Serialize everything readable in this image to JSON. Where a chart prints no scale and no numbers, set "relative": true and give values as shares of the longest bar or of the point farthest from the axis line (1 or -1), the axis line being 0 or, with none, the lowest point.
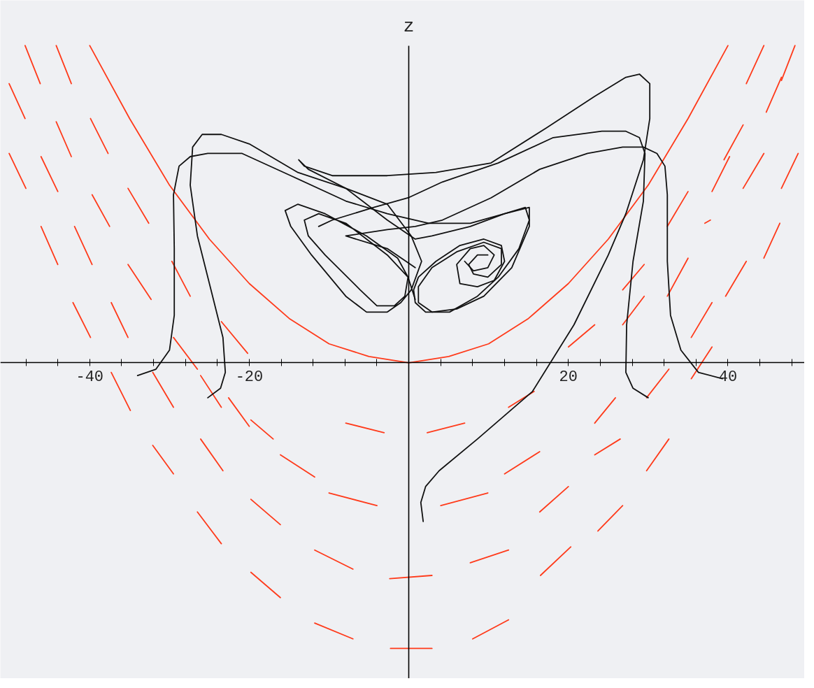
{
  "chart_data": {
    "type": "line",
    "ylabel": "z",
    "relative": true,
    "xlim": [
      -51.2,
      49.6
    ],
    "xticks": [
      {
        "value": -48,
        "label": null
      },
      {
        "value": -44,
        "label": null
      },
      -40,
      {
        "value": -36,
        "label": null
      },
      {
        "value": -32,
        "label": null
      },
      {
        "value": -28,
        "label": null
      },
      {
        "value": -24,
        "label": null
      },
      -20,
      {
        "value": -16,
        "label": null
      },
      {
        "value": -12,
        "label": null
      },
      {
        "value": -8,
        "label": null
      },
      {
        "value": -4,
        "label": null
      },
      {
        "value": 4,
        "label": null
      },
      {
        "value": 8,
        "label": null
      },
      {
        "value": 12,
        "label": null
      },
      {
        "value": 16,
        "label": null
      },
      20,
      {
        "value": 24,
        "label": null
      },
      {
        "value": 28,
        "label": null
      },
      {
        "value": 32,
        "label": null
      },
      {
        "value": 36,
        "label": null
      },
      40,
      {
        "value": 44,
        "label": null
      },
      {
        "value": 48,
        "label": null
      }
    ],
    "series": [
      {
        "color": "#ff3a1a",
        "x": [
          -40,
          -35,
          -30,
          -25,
          -20,
          -15,
          -10,
          -5,
          0,
          5,
          10,
          15,
          20,
          25,
          30,
          35,
          40
        ],
        "values": [
          1.0,
          0.77,
          0.56,
          0.39,
          0.25,
          0.14,
          0.06,
          0.02,
          0,
          0.02,
          0.06,
          0.14,
          0.25,
          0.39,
          0.56,
          0.77,
          1.0
        ]
      },
      {
        "color": "#ff3a1a",
        "x": [
          -48.1,
          -46.2
        ],
        "values": [
          1.0,
          0.88
        ]
      },
      {
        "color": "#ff3a1a",
        "x": [
          -44.2,
          -42.3
        ],
        "values": [
          1.0,
          0.88
        ]
      },
      {
        "color": "#ff3a1a",
        "x": [
          -50.1,
          -48.1
        ],
        "values": [
          0.88,
          0.77
        ]
      },
      {
        "color": "#ff3a1a",
        "x": [
          -44.2,
          -42.3
        ],
        "values": [
          0.76,
          0.65
        ]
      },
      {
        "color": "#ff3a1a",
        "x": [
          -39.9,
          -37.7
        ],
        "values": [
          0.77,
          0.66
        ]
      },
      {
        "color": "#ff3a1a",
        "x": [
          -50.1,
          -48.0
        ],
        "values": [
          0.66,
          0.55
        ]
      },
      {
        "color": "#ff3a1a",
        "x": [
          -46.1,
          -44.0
        ],
        "values": [
          0.65,
          0.54
        ]
      },
      {
        "color": "#ff3a1a",
        "x": [
          -39.7,
          -37.5
        ],
        "values": [
          0.53,
          0.43
        ]
      },
      {
        "color": "#ff3a1a",
        "x": [
          -35.2,
          -32.6
        ],
        "values": [
          0.55,
          0.44
        ]
      },
      {
        "color": "#ff3a1a",
        "x": [
          -46.1,
          -44.0
        ],
        "values": [
          0.43,
          0.31
        ]
      },
      {
        "color": "#ff3a1a",
        "x": [
          -41.9,
          -39.7
        ],
        "values": [
          0.43,
          0.31
        ]
      },
      {
        "color": "#ff3a1a",
        "x": [
          -35.2,
          -32.3
        ],
        "values": [
          0.31,
          0.2
        ]
      },
      {
        "color": "#ff3a1a",
        "x": [
          -29.7,
          -27.4
        ],
        "values": [
          0.32,
          0.21
        ]
      },
      {
        "color": "#ff3a1a",
        "x": [
          -42.1,
          -39.9
        ],
        "values": [
          0.19,
          0.08
        ]
      },
      {
        "color": "#ff3a1a",
        "x": [
          -37.3,
          -35.2
        ],
        "values": [
          0.19,
          0.08
        ]
      },
      {
        "color": "#ff3a1a",
        "x": [
          -23.5,
          -20.2
        ],
        "values": [
          0.13,
          0.03
        ]
      },
      {
        "color": "#ff3a1a",
        "x": [
          -29.5,
          -26.5
        ],
        "values": [
          0.08,
          -0.02
        ]
      },
      {
        "color": "#ff3a1a",
        "x": [
          -37.3,
          -34.9
        ],
        "values": [
          -0.03,
          -0.15
        ]
      },
      {
        "color": "#ff3a1a",
        "x": [
          -32.1,
          -29.5
        ],
        "values": [
          -0.03,
          -0.14
        ]
      },
      {
        "color": "#ff3a1a",
        "x": [
          -26.1,
          -23.5
        ],
        "values": [
          -0.04,
          -0.14
        ]
      },
      {
        "color": "#ff3a1a",
        "x": [
          -22.6,
          -20.0
        ],
        "values": [
          -0.11,
          -0.2
        ]
      },
      {
        "color": "#ff3a1a",
        "x": [
          -32.1,
          -29.5
        ],
        "values": [
          -0.26,
          -0.35
        ]
      },
      {
        "color": "#ff3a1a",
        "x": [
          -26.1,
          -23.3
        ],
        "values": [
          -0.24,
          -0.34
        ]
      },
      {
        "color": "#ff3a1a",
        "x": [
          -19.8,
          -17.0
        ],
        "values": [
          -0.18,
          -0.24
        ]
      },
      {
        "color": "#ff3a1a",
        "x": [
          -16.1,
          -11.8
        ],
        "values": [
          -0.29,
          -0.36
        ]
      },
      {
        "color": "#ff3a1a",
        "x": [
          -26.5,
          -23.5
        ],
        "values": [
          -0.47,
          -0.57
        ]
      },
      {
        "color": "#ff3a1a",
        "x": [
          -19.8,
          -16.1
        ],
        "values": [
          -0.43,
          -0.51
        ]
      },
      {
        "color": "#ff3a1a",
        "x": [
          -10.0,
          -4.0
        ],
        "values": [
          -0.41,
          -0.45
        ]
      },
      {
        "color": "#ff3a1a",
        "x": [
          -7.9,
          -3.1
        ],
        "values": [
          -0.19,
          -0.22
        ]
      },
      {
        "color": "#ff3a1a",
        "x": [
          -19.8,
          -16.1
        ],
        "values": [
          -0.66,
          -0.74
        ]
      },
      {
        "color": "#ff3a1a",
        "x": [
          -11.8,
          -7.0
        ],
        "values": [
          -0.59,
          -0.65
        ]
      },
      {
        "color": "#ff3a1a",
        "x": [
          -11.8,
          -7.0
        ],
        "values": [
          -0.82,
          -0.87
        ]
      },
      {
        "color": "#ff3a1a",
        "x": [
          -2.4,
          2.9
        ],
        "values": [
          -0.68,
          -0.67
        ]
      },
      {
        "color": "#ff3a1a",
        "x": [
          -2.3,
          2.9
        ],
        "values": [
          -0.9,
          -0.9
        ]
      },
      {
        "color": "#ff3a1a",
        "x": [
          2.3,
          7.0
        ],
        "values": [
          -0.22,
          -0.19
        ]
      },
      {
        "color": "#ff3a1a",
        "x": [
          12.5,
          15.7
        ],
        "values": [
          -0.14,
          -0.09
        ]
      },
      {
        "color": "#ff3a1a",
        "x": [
          12.0,
          16.4
        ],
        "values": [
          -0.35,
          -0.28
        ]
      },
      {
        "color": "#ff3a1a",
        "x": [
          4.0,
          9.9
        ],
        "values": [
          -0.45,
          -0.41
        ]
      },
      {
        "color": "#ff3a1a",
        "x": [
          7.7,
          12.5
        ],
        "values": [
          -0.63,
          -0.59
        ]
      },
      {
        "color": "#ff3a1a",
        "x": [
          16.4,
          20.0
        ],
        "values": [
          -0.47,
          -0.39
        ]
      },
      {
        "color": "#ff3a1a",
        "x": [
          23.3,
          25.9
        ],
        "values": [
          -0.19,
          -0.11
        ]
      },
      {
        "color": "#ff3a1a",
        "x": [
          16.5,
          20.3
        ],
        "values": [
          -0.67,
          -0.58
        ]
      },
      {
        "color": "#ff3a1a",
        "x": [
          8.0,
          12.5
        ],
        "values": [
          -0.87,
          -0.81
        ]
      },
      {
        "color": "#ff3a1a",
        "x": [
          23.3,
          26.5
        ],
        "values": [
          -0.29,
          -0.24
        ]
      },
      {
        "color": "#ff3a1a",
        "x": [
          23.7,
          26.8
        ],
        "values": [
          -0.53,
          -0.45
        ]
      },
      {
        "color": "#ff3a1a",
        "x": [
          29.8,
          32.6
        ],
        "values": [
          -0.34,
          -0.24
        ]
      },
      {
        "color": "#ff3a1a",
        "x": [
          29.8,
          32.6
        ],
        "values": [
          -0.11,
          -0.02
        ]
      },
      {
        "color": "#ff3a1a",
        "x": [
          35.4,
          38.0
        ],
        "values": [
          -0.05,
          0.05
        ]
      },
      {
        "color": "#ff3a1a",
        "x": [
          20.0,
          23.3
        ],
        "values": [
          0.05,
          0.12
        ]
      },
      {
        "color": "#ff3a1a",
        "x": [
          26.8,
          29.5
        ],
        "values": [
          0.12,
          0.21
        ]
      },
      {
        "color": "#ff3a1a",
        "x": [
          26.8,
          29.5
        ],
        "values": [
          0.23,
          0.31
        ]
      },
      {
        "color": "#ff3a1a",
        "x": [
          32.4,
          35.0
        ],
        "values": [
          0.21,
          0.33
        ]
      },
      {
        "color": "#ff3a1a",
        "x": [
          32.4,
          35.0
        ],
        "values": [
          0.43,
          0.54
        ]
      },
      {
        "color": "#ff3a1a",
        "x": [
          39.7,
          42.3
        ],
        "values": [
          0.21,
          0.32
        ]
      },
      {
        "color": "#ff3a1a",
        "x": [
          35.4,
          38.0
        ],
        "values": [
          0.08,
          0.19
        ]
      },
      {
        "color": "#ff3a1a",
        "x": [
          38.0,
          40.2
        ],
        "values": [
          0.54,
          0.65
        ]
      },
      {
        "color": "#ff3a1a",
        "x": [
          41.9,
          44.5
        ],
        "values": [
          0.55,
          0.66
        ]
      },
      {
        "color": "#ff3a1a",
        "x": [
          44.5,
          46.5
        ],
        "values": [
          0.33,
          0.44
        ]
      },
      {
        "color": "#ff3a1a",
        "x": [
          37.1,
          37.8
        ],
        "values": [
          0.44,
          0.45
        ]
      },
      {
        "color": "#ff3a1a",
        "x": [
          46.7,
          48.8
        ],
        "values": [
          0.55,
          0.66
        ]
      },
      {
        "color": "#ff3a1a",
        "x": [
          39.5,
          41.9
        ],
        "values": [
          0.64,
          0.75
        ]
      },
      {
        "color": "#ff3a1a",
        "x": [
          44.8,
          46.7
        ],
        "values": [
          0.79,
          0.9
        ]
      },
      {
        "color": "#ff3a1a",
        "x": [
          42.3,
          44.5
        ],
        "values": [
          0.88,
          1.0
        ]
      },
      {
        "color": "#ff3a1a",
        "x": [
          46.7,
          48.4
        ],
        "values": [
          0.89,
          1.0
        ]
      },
      {
        "color": "#111111",
        "x": [
          -34.0,
          -31.7,
          -30.0,
          -29.4,
          -29.4,
          -29.5,
          -28.8,
          -27.4,
          -25.2,
          -20.9,
          -14.8,
          -7.9,
          -2.7,
          2.5,
          7.7,
          12.0,
          14.6,
          15.1,
          13.8,
          11.2,
          8.6,
          5.1,
          2.1,
          0.8,
          0.6,
          1.2,
          3.4,
          6.4,
          9.4,
          11.6,
          12.0,
          10.7,
          8.6,
          6.4,
          6.0,
          7.7,
          9.4,
          10.7,
          9.9,
          8.1,
          7.0
        ],
        "values": [
          -0.04,
          -0.02,
          0.04,
          0.15,
          0.36,
          0.53,
          0.62,
          0.65,
          0.66,
          0.66,
          0.59,
          0.51,
          0.47,
          0.44,
          0.44,
          0.47,
          0.49,
          0.45,
          0.36,
          0.27,
          0.21,
          0.16,
          0.16,
          0.19,
          0.23,
          0.27,
          0.32,
          0.37,
          0.39,
          0.37,
          0.32,
          0.26,
          0.24,
          0.25,
          0.31,
          0.36,
          0.37,
          0.34,
          0.3,
          0.29,
          0.32
        ]
      },
      {
        "color": "#111111",
        "x": [
          -25.2,
          -23.6,
          -23.0,
          -23.3,
          -24.8,
          -26.5,
          -27.4,
          -27.1,
          -25.9,
          -23.5,
          -20.0,
          -13.9,
          -7.9,
          -2.7,
          0.3,
          1.6,
          0.3,
          -1.0,
          -2.7,
          -5.3,
          -7.9,
          -12.2,
          -14.8,
          -15.5,
          -13.9,
          -10.5,
          -5.3,
          -1.4,
          -0.1,
          -0.5,
          -1.8,
          -4.0,
          -6.1,
          -10.5,
          -12.6,
          -13.1,
          -11.3,
          -7.9,
          -2.7,
          -0.1,
          0.8
        ],
        "values": [
          -0.11,
          -0.08,
          -0.03,
          0.08,
          0.23,
          0.4,
          0.56,
          0.68,
          0.72,
          0.72,
          0.69,
          0.6,
          0.55,
          0.5,
          0.4,
          0.32,
          0.23,
          0.19,
          0.16,
          0.16,
          0.21,
          0.34,
          0.43,
          0.48,
          0.5,
          0.47,
          0.4,
          0.33,
          0.27,
          0.21,
          0.18,
          0.18,
          0.23,
          0.34,
          0.4,
          0.45,
          0.47,
          0.44,
          0.34,
          0.27,
          0.2
        ]
      },
      {
        "color": "#111111",
        "x": [
          1.8,
          1.5,
          2.1,
          3.8,
          8.6,
          15.5,
          20.7,
          25.0,
          27.2,
          29.4,
          30.2,
          30.2,
          28.9,
          27.2,
          23.3,
          17.2,
          10.3,
          3.4,
          -2.7,
          -9.6,
          -13.1,
          -13.8,
          -12.6,
          -7.9,
          -2.7,
          0.8,
          2.9,
          7.7,
          12.0,
          15.1,
          15.1,
          12.9,
          9.4,
          6.0,
          2.9,
          1.2,
          1.2,
          2.9,
          6.0,
          9.4,
          11.6,
          11.6,
          9.9,
          8.1,
          7.5,
          8.6,
          9.9
        ],
        "values": [
          -0.5,
          -0.44,
          -0.39,
          -0.34,
          -0.24,
          -0.09,
          0.12,
          0.34,
          0.47,
          0.64,
          0.77,
          0.88,
          0.91,
          0.9,
          0.84,
          0.74,
          0.63,
          0.6,
          0.59,
          0.59,
          0.62,
          0.64,
          0.61,
          0.55,
          0.45,
          0.39,
          0.4,
          0.43,
          0.47,
          0.49,
          0.43,
          0.3,
          0.21,
          0.17,
          0.16,
          0.19,
          0.24,
          0.3,
          0.35,
          0.38,
          0.36,
          0.31,
          0.27,
          0.28,
          0.31,
          0.34,
          0.34
        ]
      },
      {
        "color": "#111111",
        "x": [
          30.0,
          28.1,
          27.2,
          27.3,
          28.1,
          29.4,
          29.6,
          28.9,
          27.2,
          24.2,
          18.1,
          11.2,
          4.2,
          -0.1,
          -4.4,
          -9.6,
          -11.3
        ],
        "values": [
          -0.11,
          -0.08,
          -0.03,
          0.12,
          0.32,
          0.51,
          0.66,
          0.71,
          0.73,
          0.73,
          0.71,
          0.63,
          0.57,
          0.52,
          0.49,
          0.45,
          0.43
        ]
      },
      {
        "color": "#111111",
        "x": [
          39.3,
          36.3,
          34.1,
          32.8,
          32.4,
          32.4,
          32.1,
          31.1,
          29.4,
          26.8,
          22.4,
          16.4,
          10.3,
          4.2,
          0.8,
          -2.7,
          -7.9,
          -2.7,
          0.8
        ],
        "values": [
          -0.05,
          -0.03,
          0.04,
          0.15,
          0.32,
          0.53,
          0.62,
          0.66,
          0.68,
          0.68,
          0.66,
          0.61,
          0.52,
          0.45,
          0.43,
          0.42,
          0.4,
          0.36,
          0.3
        ]
      }
    ]
  }
}
